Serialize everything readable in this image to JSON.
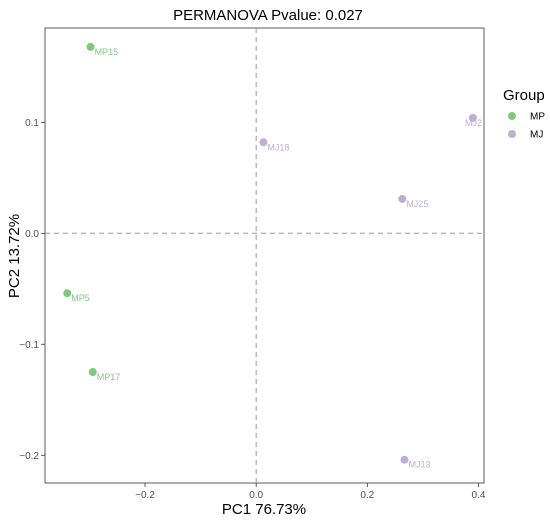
{
  "chart_data": {
    "type": "scatter",
    "title": "PERMANOVA Pvalue: 0.027",
    "xlabel": "PC1 76.73%",
    "ylabel": "PC2 13.72%",
    "xlim": [
      -0.38,
      0.41
    ],
    "ylim": [
      -0.225,
      0.185
    ],
    "xticks": [
      -0.2,
      0.0,
      0.2,
      0.4
    ],
    "xtick_labels": [
      "−0.2",
      "0.0",
      "0.2",
      "0.4"
    ],
    "yticks": [
      -0.2,
      -0.1,
      0.0,
      0.1
    ],
    "ytick_labels": [
      "−0.2",
      "−0.1",
      "0.0",
      "0.1"
    ],
    "reference_lines": {
      "x": 0,
      "y": 0,
      "style": "dashed"
    },
    "grid": false,
    "legend": {
      "title": "Group",
      "placement": "right",
      "entries": [
        {
          "label": "MP",
          "color": "#7fc97f"
        },
        {
          "label": "MJ",
          "color": "#beaed4"
        }
      ]
    },
    "series": [
      {
        "name": "MP",
        "color": "#7fc97f",
        "points": [
          {
            "label": "MP15",
            "x": -0.298,
            "y": 0.168
          },
          {
            "label": "MP5",
            "x": -0.34,
            "y": -0.054
          },
          {
            "label": "MP17",
            "x": -0.294,
            "y": -0.125
          }
        ]
      },
      {
        "name": "MJ",
        "color": "#beaed4",
        "points": [
          {
            "label": "MJ2",
            "x": 0.39,
            "y": 0.104
          },
          {
            "label": "MJ18",
            "x": 0.013,
            "y": 0.082
          },
          {
            "label": "MJ25",
            "x": 0.263,
            "y": 0.031
          },
          {
            "label": "MJ13",
            "x": 0.267,
            "y": -0.204
          }
        ]
      }
    ]
  }
}
